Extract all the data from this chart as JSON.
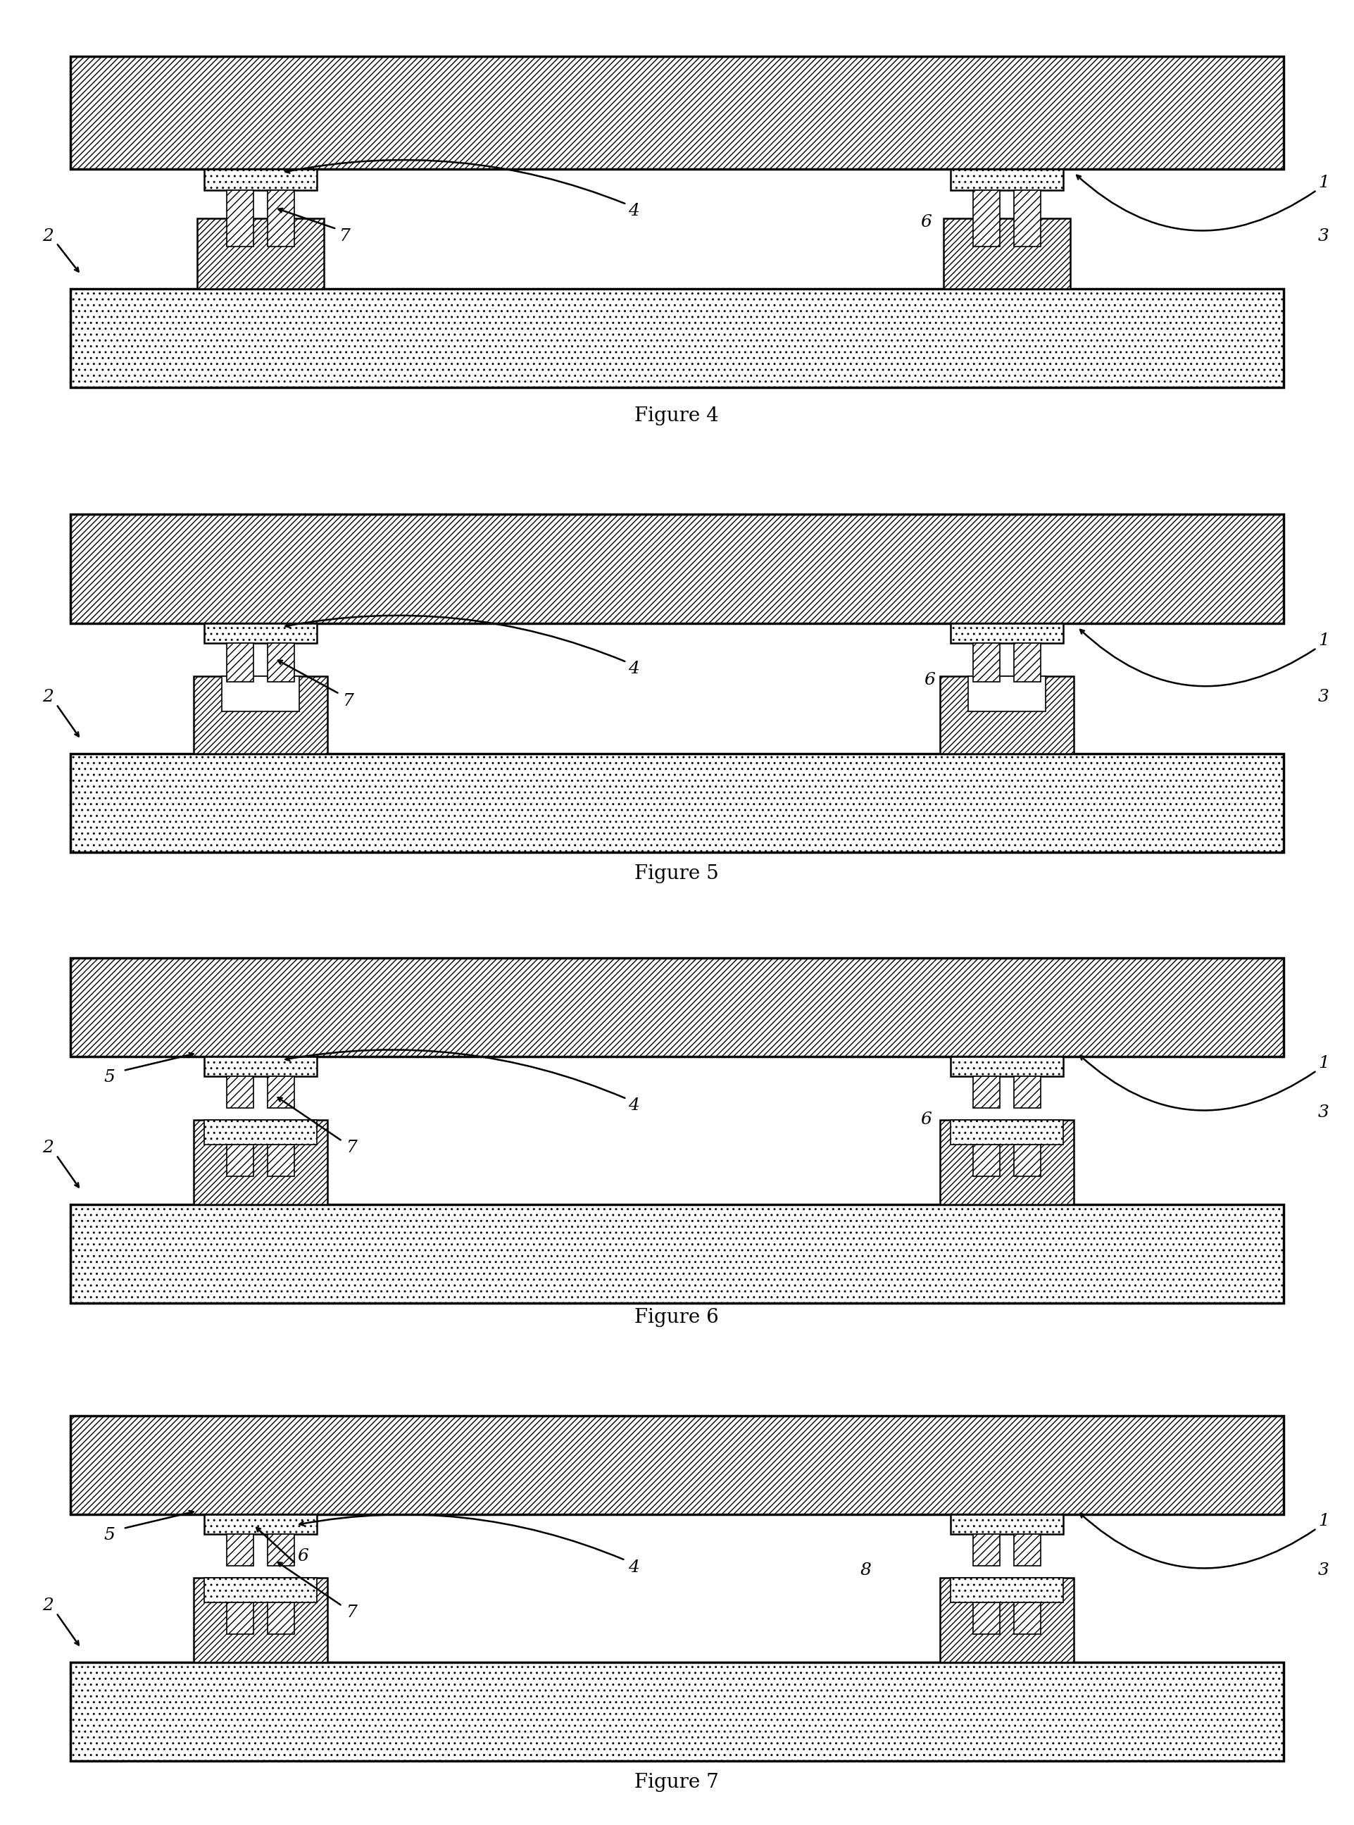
{
  "bg_color": "#ffffff",
  "lw_thick": 2.5,
  "lw_med": 1.8,
  "lw_thin": 1.2,
  "label_fontsize": 18,
  "title_fontsize": 20,
  "fig_titles": [
    "Figure 4",
    "Figure 5",
    "Figure 6",
    "Figure 7"
  ],
  "upper_hatch": "////",
  "lower_hatch": "..",
  "pad_hatch": "..",
  "pin_hatch": "///",
  "bump_hatch": "////",
  "rcv_hatch": "xxxx"
}
